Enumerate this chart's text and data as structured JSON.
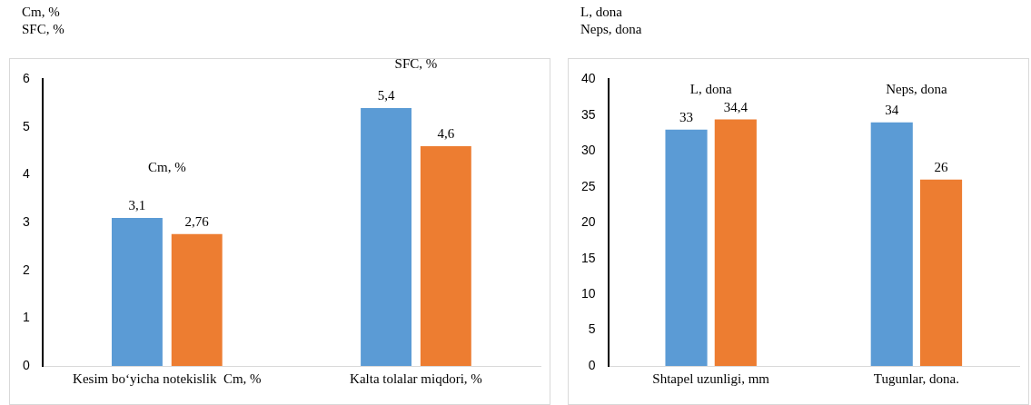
{
  "chart_data": [
    {
      "type": "bar",
      "ylabel": "Cm, %\nSFC, %",
      "categories": [
        "Kesim bo‘yicha notekislik  Cm, %",
        "Kalta tolalar miqdori, %"
      ],
      "series": [
        {
          "color": "#5b9bd5",
          "values": [
            3.1,
            5.4
          ],
          "value_labels": [
            "3,1",
            "5,4"
          ]
        },
        {
          "color": "#ed7d31",
          "values": [
            2.76,
            4.6
          ],
          "value_labels": [
            "2,76",
            "4,6"
          ]
        }
      ],
      "ylim": [
        0,
        6
      ],
      "yticks": [
        0,
        1,
        2,
        3,
        4,
        5,
        6
      ],
      "grid": false,
      "legend": false,
      "annotations": [
        "Cm, %",
        "SFC, %"
      ]
    },
    {
      "type": "bar",
      "ylabel": "L, dona\nNeps, dona",
      "categories": [
        "Shtapel uzunligi, mm",
        "Tugunlar, dona."
      ],
      "series": [
        {
          "color": "#5b9bd5",
          "values": [
            33,
            34
          ],
          "value_labels": [
            "33",
            "34"
          ]
        },
        {
          "color": "#ed7d31",
          "values": [
            34.4,
            26
          ],
          "value_labels": [
            "34,4",
            "26"
          ]
        }
      ],
      "ylim": [
        0,
        40
      ],
      "yticks": [
        0,
        5,
        10,
        15,
        20,
        25,
        30,
        35,
        40
      ],
      "grid": false,
      "legend": false,
      "annotations": [
        "L, dona",
        "Neps, dona"
      ]
    }
  ]
}
